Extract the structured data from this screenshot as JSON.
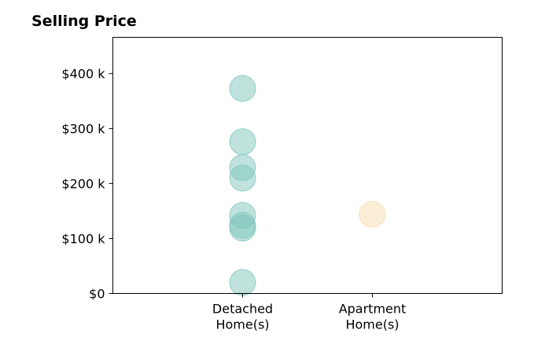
{
  "chart_data": {
    "type": "scatter",
    "title": "Selling Price",
    "categories": [
      "Detached\nHome(s)",
      "Apartment\nHome(s)"
    ],
    "series": [
      {
        "category": "Detached\nHome(s)",
        "color": "#7fc5bc",
        "values": [
          373000,
          276000,
          229000,
          210000,
          142000,
          124000,
          119000,
          20000
        ]
      },
      {
        "category": "Apartment\nHome(s)",
        "color": "#f5ddb0",
        "values": [
          144000
        ]
      }
    ],
    "y_ticks": [
      {
        "value": 0,
        "label": "$0"
      },
      {
        "value": 100000,
        "label": "$100 k"
      },
      {
        "value": 200000,
        "label": "$200 k"
      },
      {
        "value": 300000,
        "label": "$300 k"
      },
      {
        "value": 400000,
        "label": "$400 k"
      }
    ],
    "ylim": [
      0,
      466000
    ],
    "xlim": [
      -1,
      2
    ],
    "grid": false,
    "point_opacity": 0.5
  }
}
